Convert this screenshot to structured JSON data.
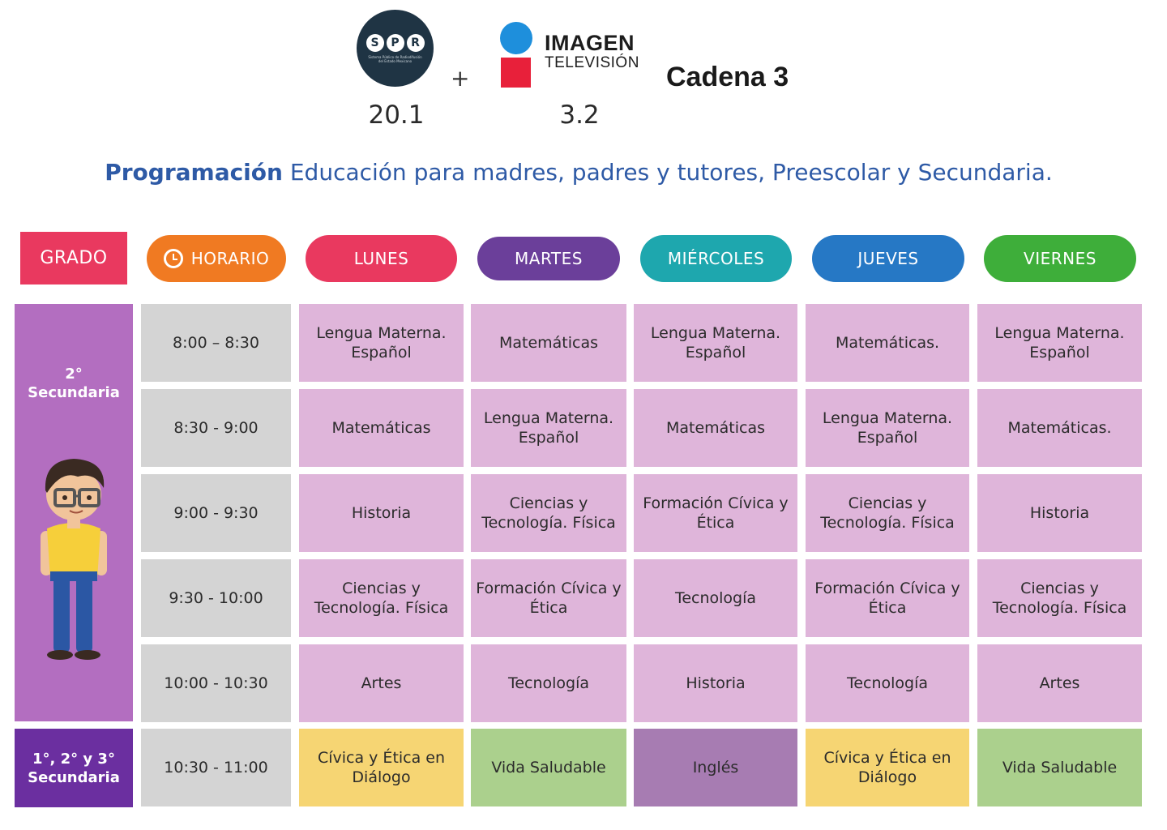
{
  "header": {
    "spr_logo_text": "SPR",
    "spr_logo_subtext": "Sistema Público de Radiodifusión del Estado Mexicano",
    "plus": "+",
    "imagen_line1": "IMAGEN",
    "imagen_line2": "TELEVISIÓN",
    "cadena": "Cadena 3",
    "channel_spr": "20.1",
    "channel_imagen": "3.2"
  },
  "subtitle": {
    "bold": "Programación",
    "rest": "Educación para madres, padres y tutores, Preescolar y Secundaria."
  },
  "columns": {
    "grado": "GRADO",
    "horario": "HORARIO",
    "lunes": "LUNES",
    "martes": "MARTES",
    "miercoles": "MIÉRCOLES",
    "jueves": "JUEVES",
    "viernes": "VIERNES"
  },
  "colors": {
    "grado": "#e9395f",
    "horario": "#f07a22",
    "lunes": "#e9395f",
    "martes": "#6b3f9a",
    "miercoles": "#1ea7ae",
    "jueves": "#2678c5",
    "viernes": "#3eae3a",
    "cell_pink": "#dfb5da",
    "cell_time": "#d4d4d4",
    "cell_yellow": "#f6d573",
    "cell_green": "#abd08d",
    "cell_purple": "#a77cb2",
    "title_blue": "#2e5aa6"
  },
  "grades": {
    "g2_line1": "2°",
    "g2_line2": "Secundaria",
    "g123_line1": "1°, 2° y 3°",
    "g123_line2": "Secundaria"
  },
  "rows": [
    {
      "time": "8:00 – 8:30",
      "lunes": "Lengua Materna. Español",
      "martes": "Matemáticas",
      "miercoles": "Lengua Materna. Español",
      "jueves": "Matemáticas.",
      "viernes": "Lengua Materna. Español"
    },
    {
      "time": "8:30 - 9:00",
      "lunes": "Matemáticas",
      "martes": "Lengua Materna. Español",
      "miercoles": "Matemáticas",
      "jueves": "Lengua Materna. Español",
      "viernes": "Matemáticas."
    },
    {
      "time": "9:00 - 9:30",
      "lunes": "Historia",
      "martes": "Ciencias y Tecnología. Física",
      "miercoles": "Formación Cívica y Ética",
      "jueves": "Ciencias y Tecnología. Física",
      "viernes": "Historia"
    },
    {
      "time": "9:30 - 10:00",
      "lunes": "Ciencias y Tecnología. Física",
      "martes": "Formación Cívica y Ética",
      "miercoles": "Tecnología",
      "jueves": "Formación Cívica y Ética",
      "viernes": "Ciencias y Tecnología. Física"
    },
    {
      "time": "10:00 - 10:30",
      "lunes": "Artes",
      "martes": "Tecnología",
      "miercoles": "Historia",
      "jueves": "Tecnología",
      "viernes": "Artes"
    },
    {
      "time": "10:30 - 11:00",
      "lunes": "Cívica y Ética en Diálogo",
      "martes": "Vida Saludable",
      "miercoles": "Inglés",
      "jueves": "Cívica y Ética en Diálogo",
      "viernes": "Vida Saludable"
    }
  ]
}
